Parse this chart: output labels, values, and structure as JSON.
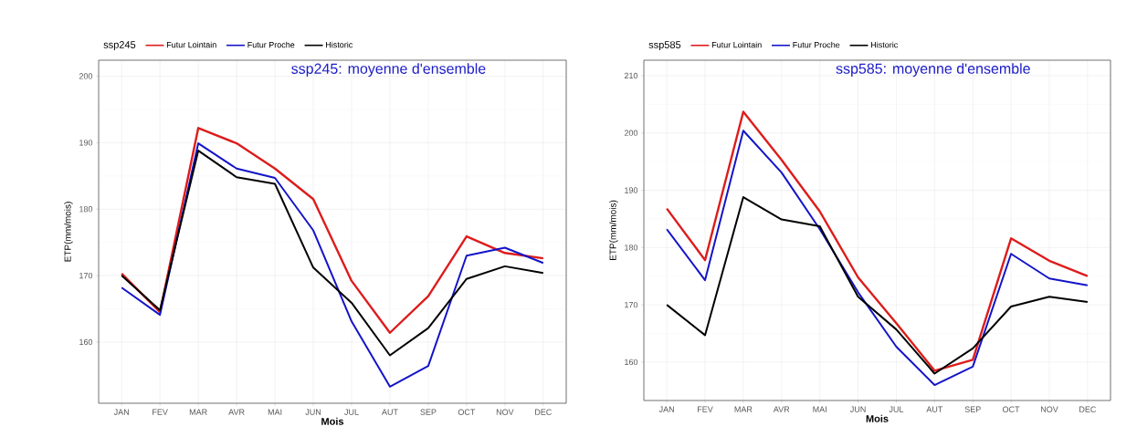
{
  "chart_data": [
    {
      "type": "line",
      "title": "ssp245: moyenne d'ensemble",
      "xlabel": "Mois",
      "ylabel": "ETP(mm/mois)",
      "legend_title": "ssp245",
      "legend": "top",
      "grid": true,
      "categories": [
        "JAN",
        "FEV",
        "MAR",
        "AVR",
        "MAI",
        "JUN",
        "JUL",
        "AUT",
        "SEP",
        "OCT",
        "NOV",
        "DEC"
      ],
      "ylim": [
        150.8,
        202.4
      ],
      "yticks": [
        160,
        170,
        180,
        190,
        200
      ],
      "series": [
        {
          "name": "Futur Lointain",
          "color": "#dd1c1c",
          "values": [
            170.3,
            164.5,
            192.2,
            189.9,
            186.1,
            181.5,
            169.2,
            161.4,
            166.9,
            175.9,
            173.4,
            172.6
          ]
        },
        {
          "name": "Futur Proche",
          "color": "#1414c8",
          "values": [
            168.2,
            164.1,
            189.9,
            186.1,
            184.7,
            176.8,
            163.1,
            153.3,
            156.4,
            173.0,
            174.2,
            171.9
          ]
        },
        {
          "name": "Historic",
          "color": "#000000",
          "values": [
            170.0,
            164.8,
            188.8,
            184.8,
            183.8,
            171.2,
            165.9,
            158.0,
            162.1,
            169.5,
            171.4,
            170.4
          ]
        }
      ]
    },
    {
      "type": "line",
      "title": "ssp585: moyenne d'ensemble",
      "xlabel": "Mois",
      "ylabel": "ETP(mm/mois)",
      "legend_title": "ssp585",
      "legend": "top",
      "grid": true,
      "categories": [
        "JAN",
        "FEV",
        "MAR",
        "AVR",
        "MAI",
        "JUN",
        "JUL",
        "AUT",
        "SEP",
        "OCT",
        "NOV",
        "DEC"
      ],
      "ylim": [
        153.3,
        212.7
      ],
      "yticks": [
        160,
        170,
        180,
        190,
        200,
        210
      ],
      "series": [
        {
          "name": "Futur Lointain",
          "color": "#dd1c1c",
          "values": [
            186.8,
            177.8,
            203.7,
            195.3,
            186.3,
            174.8,
            166.8,
            158.5,
            160.4,
            181.6,
            177.7,
            175.0
          ]
        },
        {
          "name": "Futur Proche",
          "color": "#1414c8",
          "values": [
            183.2,
            174.3,
            200.4,
            193.1,
            183.2,
            172.2,
            162.7,
            156.0,
            159.2,
            178.9,
            174.6,
            173.4
          ]
        },
        {
          "name": "Historic",
          "color": "#000000",
          "values": [
            170.0,
            164.7,
            188.8,
            184.9,
            183.7,
            171.4,
            165.7,
            158.0,
            162.4,
            169.7,
            171.4,
            170.5
          ]
        }
      ]
    }
  ]
}
